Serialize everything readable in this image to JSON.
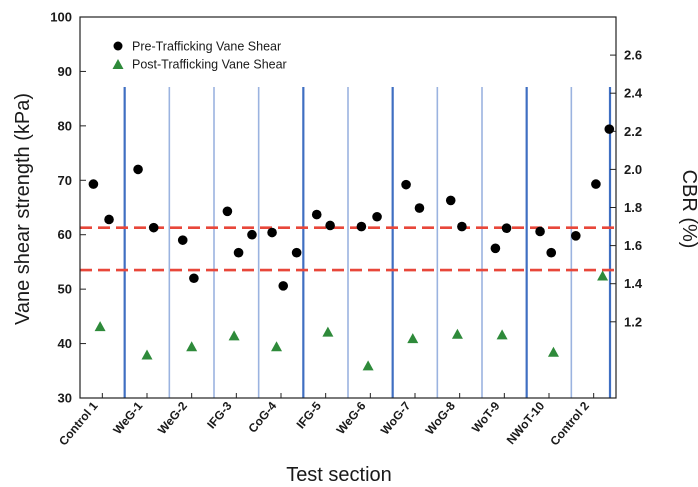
{
  "chart_data": {
    "type": "scatter",
    "xlabel": "Test section",
    "ylabel": "Vane shear strength (kPa)",
    "y2label": "CBR (%)",
    "ylim": [
      30,
      100
    ],
    "yticks": [
      30,
      40,
      50,
      60,
      70,
      80,
      90,
      100
    ],
    "y2lim": [
      0.8,
      2.8
    ],
    "y2ticks": [
      "1.2",
      "1.4",
      "1.6",
      "1.8",
      "2.0",
      "2.2",
      "2.4",
      "2.6"
    ],
    "y2tick_values": [
      1.2,
      1.4,
      1.6,
      1.8,
      2.0,
      2.2,
      2.4,
      2.6
    ],
    "categories": [
      "Control 1",
      "WeG-1",
      "WeG-2",
      "IFG-3",
      "CoG-4",
      "IFG-5",
      "WeG-6",
      "WoG-7",
      "WoG-8",
      "WoT-9",
      "NWoT-10",
      "Control 2"
    ],
    "separators": [
      {
        "after": 0,
        "style": "dark"
      },
      {
        "after": 1,
        "style": "light"
      },
      {
        "after": 2,
        "style": "light"
      },
      {
        "after": 3,
        "style": "light"
      },
      {
        "after": 4,
        "style": "dark"
      },
      {
        "after": 5,
        "style": "light"
      },
      {
        "after": 6,
        "style": "dark"
      },
      {
        "after": 7,
        "style": "light"
      },
      {
        "after": 8,
        "style": "light"
      },
      {
        "after": 9,
        "style": "dark"
      },
      {
        "after": 10,
        "style": "light"
      },
      {
        "after": 11,
        "style": "dark"
      }
    ],
    "reference_lines": [
      {
        "y": 61.3,
        "color": "#e8473a"
      },
      {
        "y": 53.5,
        "color": "#e8473a"
      }
    ],
    "legend_position": "top-left",
    "series": [
      {
        "name": "Pre-Trafficking Vane Shear",
        "marker": "circle",
        "color": "#000000",
        "points": [
          {
            "x": 0,
            "offset": -0.2,
            "y": 69.3
          },
          {
            "x": 0,
            "offset": 0.15,
            "y": 62.8
          },
          {
            "x": 1,
            "offset": -0.2,
            "y": 72.0
          },
          {
            "x": 1,
            "offset": 0.15,
            "y": 61.3
          },
          {
            "x": 2,
            "offset": -0.2,
            "y": 59.0
          },
          {
            "x": 2,
            "offset": 0.05,
            "y": 52.0
          },
          {
            "x": 3,
            "offset": -0.2,
            "y": 64.3
          },
          {
            "x": 3,
            "offset": 0.05,
            "y": 56.7
          },
          {
            "x": 3,
            "offset": 0.35,
            "y": 60.0
          },
          {
            "x": 4,
            "offset": -0.2,
            "y": 60.4
          },
          {
            "x": 4,
            "offset": 0.05,
            "y": 50.6
          },
          {
            "x": 4,
            "offset": 0.35,
            "y": 56.7
          },
          {
            "x": 5,
            "offset": -0.2,
            "y": 63.7
          },
          {
            "x": 5,
            "offset": 0.1,
            "y": 61.7
          },
          {
            "x": 6,
            "offset": -0.2,
            "y": 61.5
          },
          {
            "x": 6,
            "offset": 0.15,
            "y": 63.3
          },
          {
            "x": 7,
            "offset": -0.2,
            "y": 69.2
          },
          {
            "x": 7,
            "offset": 0.1,
            "y": 64.9
          },
          {
            "x": 8,
            "offset": -0.2,
            "y": 66.3
          },
          {
            "x": 8,
            "offset": 0.05,
            "y": 61.5
          },
          {
            "x": 9,
            "offset": -0.2,
            "y": 57.5
          },
          {
            "x": 9,
            "offset": 0.05,
            "y": 61.2
          },
          {
            "x": 10,
            "offset": -0.2,
            "y": 60.6
          },
          {
            "x": 10,
            "offset": 0.05,
            "y": 56.7
          },
          {
            "x": 11,
            "offset": -0.4,
            "y": 59.8
          },
          {
            "x": 11,
            "offset": 0.05,
            "y": 69.3
          },
          {
            "x": 11,
            "offset": 0.35,
            "y": 79.4
          }
        ]
      },
      {
        "name": "Post-Trafficking Vane Shear",
        "marker": "triangle",
        "color": "#2e8a3a",
        "points": [
          {
            "x": 0,
            "offset": -0.05,
            "y": 43.2
          },
          {
            "x": 1,
            "offset": 0.0,
            "y": 38.0
          },
          {
            "x": 2,
            "offset": 0.0,
            "y": 39.5
          },
          {
            "x": 3,
            "offset": -0.05,
            "y": 41.5
          },
          {
            "x": 4,
            "offset": -0.1,
            "y": 39.5
          },
          {
            "x": 5,
            "offset": 0.05,
            "y": 42.2
          },
          {
            "x": 6,
            "offset": -0.05,
            "y": 36.0
          },
          {
            "x": 7,
            "offset": -0.05,
            "y": 41.0
          },
          {
            "x": 8,
            "offset": -0.05,
            "y": 41.8
          },
          {
            "x": 9,
            "offset": -0.05,
            "y": 41.7
          },
          {
            "x": 10,
            "offset": 0.1,
            "y": 38.5
          },
          {
            "x": 11,
            "offset": 0.2,
            "y": 52.5
          }
        ]
      }
    ]
  }
}
